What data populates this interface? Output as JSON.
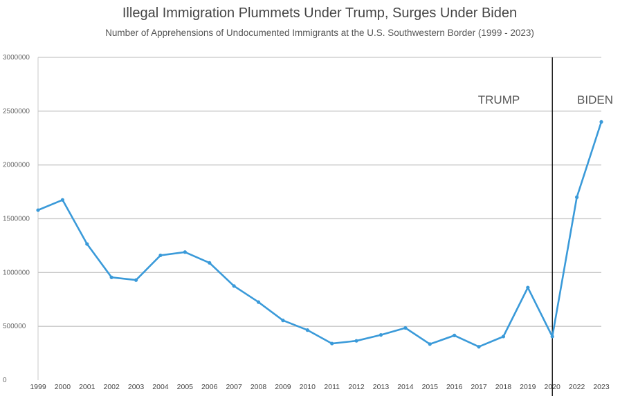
{
  "chart_data": {
    "type": "line",
    "title": "Illegal Immigration Plummets Under Trump, Surges Under Biden",
    "subtitle": "Number of Apprehensions of Undocumented Immigrants at the U.S. Southwestern Border (1999 - 2023)",
    "xlabel": "",
    "ylabel": "",
    "ylim": [
      0,
      3000000
    ],
    "y_ticks": [
      "0",
      "500000",
      "1000000",
      "1500000",
      "2000000",
      "2500000",
      "3000000"
    ],
    "grid": true,
    "legend": "none",
    "categories": [
      "1999",
      "2000",
      "2001",
      "2002",
      "2003",
      "2004",
      "2005",
      "2006",
      "2007",
      "2008",
      "2009",
      "2010",
      "2011",
      "2012",
      "2013",
      "2014",
      "2015",
      "2016",
      "2017",
      "2018",
      "2019",
      "2020",
      "2022",
      "2023"
    ],
    "series": [
      {
        "values": [
          1580000,
          1675000,
          1265000,
          955000,
          930000,
          1160000,
          1190000,
          1090000,
          875000,
          725000,
          555000,
          465000,
          340000,
          365000,
          420000,
          485000,
          335000,
          415000,
          310000,
          405000,
          860000,
          405000,
          1700000,
          2400000
        ],
        "color": "#3a9ad9"
      }
    ],
    "annotations": [
      {
        "text": "TRUMP"
      },
      {
        "text": "BIDEN"
      }
    ],
    "divider_at": "2020",
    "divider_color": "#000000"
  }
}
